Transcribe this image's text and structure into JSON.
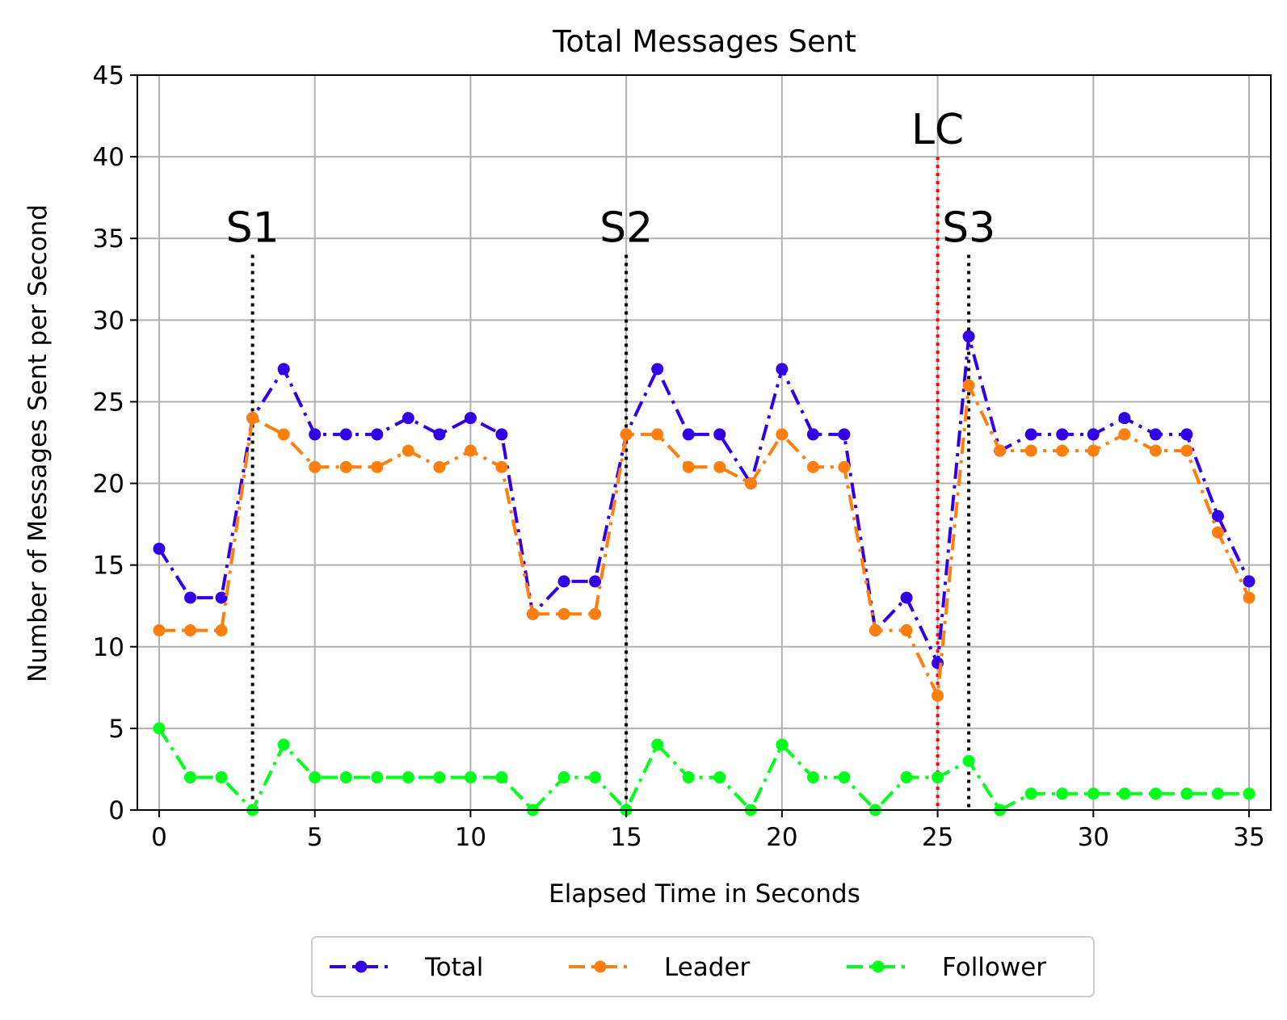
{
  "chart_data": {
    "type": "line",
    "title": "Total Messages Sent",
    "xlabel": "Elapsed Time in Seconds",
    "ylabel": "Number of Messages Sent per Second",
    "xlim": [
      -0.7,
      35.7
    ],
    "ylim": [
      0,
      45
    ],
    "xticks": [
      "0",
      "5",
      "10",
      "15",
      "20",
      "25",
      "30",
      "35"
    ],
    "yticks": [
      "0",
      "5",
      "10",
      "15",
      "20",
      "25",
      "30",
      "35",
      "40",
      "45"
    ],
    "grid": true,
    "legend_position": "bottom-center",
    "x": [
      0,
      1,
      2,
      3,
      4,
      5,
      6,
      7,
      8,
      9,
      10,
      11,
      12,
      13,
      14,
      15,
      16,
      17,
      18,
      19,
      20,
      21,
      22,
      23,
      24,
      25,
      26,
      27,
      28,
      29,
      30,
      31,
      32,
      33,
      34,
      35
    ],
    "series": [
      {
        "name": "Total",
        "color": "#3300e6",
        "values": [
          16,
          13,
          13,
          24,
          27,
          23,
          23,
          23,
          24,
          23,
          24,
          23,
          12,
          14,
          14,
          23,
          27,
          23,
          23,
          20,
          27,
          23,
          23,
          11,
          13,
          9,
          29,
          22,
          23,
          23,
          23,
          24,
          23,
          23,
          18,
          14
        ]
      },
      {
        "name": "Leader",
        "color": "#ff7f0e",
        "values": [
          11,
          11,
          11,
          24,
          23,
          21,
          21,
          21,
          22,
          21,
          22,
          21,
          12,
          12,
          12,
          23,
          23,
          21,
          21,
          20,
          23,
          21,
          21,
          11,
          11,
          7,
          26,
          22,
          22,
          22,
          22,
          23,
          22,
          22,
          17,
          13
        ]
      },
      {
        "name": "Follower",
        "color": "#00ff1a",
        "values": [
          5,
          2,
          2,
          0,
          4,
          2,
          2,
          2,
          2,
          2,
          2,
          2,
          0,
          2,
          2,
          0,
          4,
          2,
          2,
          0,
          4,
          2,
          2,
          0,
          2,
          2,
          3,
          0,
          1,
          1,
          1,
          1,
          1,
          1,
          1,
          1
        ]
      }
    ],
    "annotations": [
      {
        "label": "S1",
        "x": 3,
        "y_top": 34,
        "color": "#000000"
      },
      {
        "label": "S2",
        "x": 15,
        "y_top": 34,
        "color": "#000000"
      },
      {
        "label": "LC",
        "x": 25,
        "y_top": 40,
        "color": "#ff0000"
      },
      {
        "label": "S3",
        "x": 26,
        "y_top": 34,
        "color": "#000000"
      }
    ]
  }
}
